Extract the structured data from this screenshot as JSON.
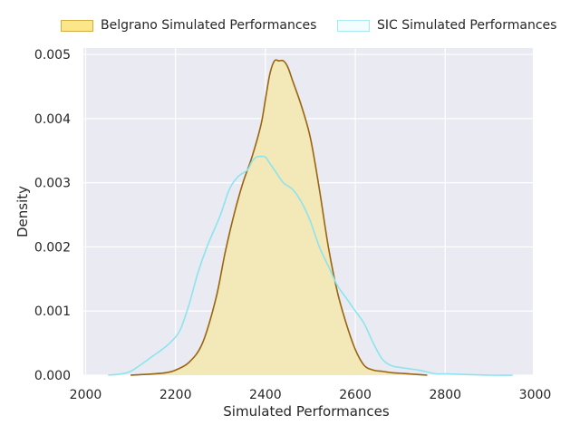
{
  "chart_data": {
    "type": "area",
    "title": "",
    "xlabel": "Simulated Performances",
    "ylabel": "Density",
    "xlim": [
      1995,
      2995
    ],
    "ylim": [
      0,
      0.0051
    ],
    "xticks": [
      2000,
      2200,
      2400,
      2600,
      2800,
      3000
    ],
    "yticks": [
      0.0,
      0.001,
      0.002,
      0.003,
      0.004,
      0.005
    ],
    "xtick_labels": [
      "2000",
      "2200",
      "2400",
      "2600",
      "2800",
      "3000"
    ],
    "ytick_labels": [
      "0.000",
      "0.001",
      "0.002",
      "0.003",
      "0.004",
      "0.005"
    ],
    "grid": true,
    "legend_position": "top",
    "series": [
      {
        "name": "Belgrano Simulated Performances",
        "style": "filled",
        "fill_color": "#f2e8b8",
        "line_color": "#9a6410",
        "legend_fill": "#fce68a",
        "legend_edge": "#d1ad44",
        "x": [
          2100,
          2150,
          2180,
          2200,
          2230,
          2260,
          2290,
          2310,
          2330,
          2350,
          2370,
          2390,
          2400,
          2410,
          2420,
          2430,
          2440,
          2450,
          2460,
          2480,
          2500,
          2520,
          2540,
          2560,
          2580,
          2600,
          2620,
          2640,
          2660,
          2680,
          2700,
          2720,
          2740,
          2760
        ],
        "y": [
          0.0,
          2e-05,
          4e-05,
          8e-05,
          0.0002,
          0.0005,
          0.0012,
          0.0019,
          0.0025,
          0.003,
          0.0034,
          0.0039,
          0.0043,
          0.0047,
          0.0049,
          0.0049,
          0.0049,
          0.0048,
          0.0046,
          0.0042,
          0.0037,
          0.0029,
          0.002,
          0.0013,
          0.0008,
          0.0004,
          0.00015,
          8e-05,
          6e-05,
          4e-05,
          3e-05,
          2e-05,
          1e-05,
          0.0
        ]
      },
      {
        "name": "SIC Simulated Performances",
        "style": "line",
        "line_color": "#8de4ee",
        "legend_fill": "#f3fdff",
        "legend_edge": "#a6ebf2",
        "x": [
          2050,
          2080,
          2100,
          2120,
          2150,
          2170,
          2190,
          2210,
          2230,
          2250,
          2270,
          2300,
          2320,
          2340,
          2360,
          2370,
          2380,
          2390,
          2400,
          2410,
          2420,
          2440,
          2460,
          2480,
          2500,
          2520,
          2540,
          2560,
          2580,
          2600,
          2620,
          2640,
          2660,
          2680,
          2700,
          2720,
          2740,
          2760,
          2780,
          2800,
          2850,
          2900,
          2950
        ],
        "y": [
          0.0,
          2e-05,
          6e-05,
          0.00015,
          0.0003,
          0.0004,
          0.00052,
          0.0007,
          0.0011,
          0.0016,
          0.002,
          0.0025,
          0.0029,
          0.0031,
          0.0032,
          0.00333,
          0.0034,
          0.00341,
          0.0034,
          0.0033,
          0.0032,
          0.003,
          0.0029,
          0.0027,
          0.0024,
          0.002,
          0.0017,
          0.0014,
          0.0012,
          0.001,
          0.0008,
          0.0005,
          0.00025,
          0.00015,
          0.00012,
          0.0001,
          8e-05,
          5e-05,
          2e-05,
          2e-05,
          1e-05,
          0.0,
          0.0
        ]
      }
    ]
  }
}
